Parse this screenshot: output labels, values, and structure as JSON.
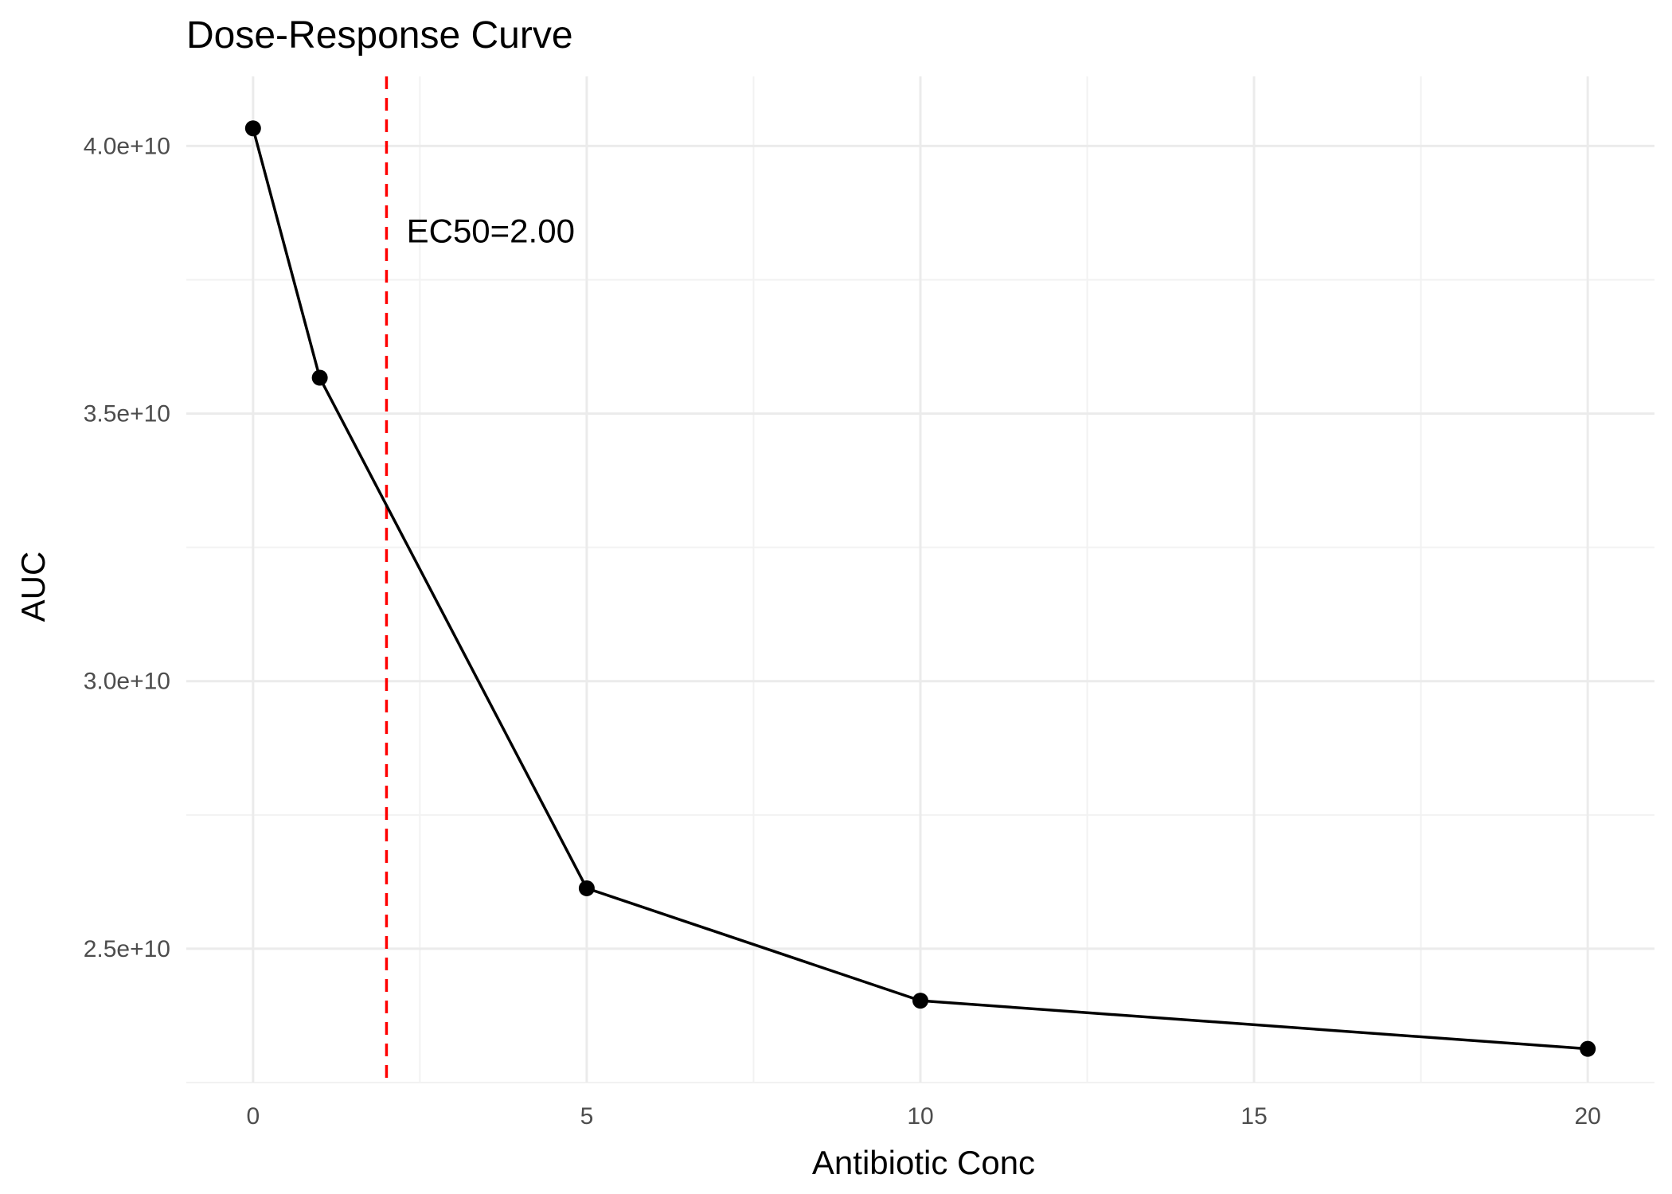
{
  "chart_data": {
    "type": "line",
    "title": "Dose-Response Curve",
    "xlabel": "Antibiotic Conc",
    "ylabel": "AUC",
    "x": [
      0,
      1,
      5,
      10,
      20
    ],
    "series": [
      {
        "values": [
          40330000000,
          35670000000,
          26130000000,
          24030000000,
          23130000000
        ]
      }
    ],
    "xlim": [
      -1,
      21
    ],
    "ylim": [
      22500000000,
      41300000000
    ],
    "x_ticks": [
      0,
      5,
      10,
      15,
      20
    ],
    "x_tick_labels": [
      "0",
      "5",
      "10",
      "15",
      "20"
    ],
    "x_minor_ticks": [
      2.5,
      7.5,
      12.5,
      17.5
    ],
    "y_ticks": [
      25000000000,
      30000000000,
      35000000000,
      40000000000
    ],
    "y_tick_labels": [
      "2.5e+10",
      "3.0e+10",
      "3.5e+10",
      "4.0e+10"
    ],
    "y_minor_ticks": [
      22500000000,
      27500000000,
      32500000000,
      37500000000
    ],
    "grid": true,
    "legend": "none",
    "reference_line": {
      "orientation": "vertical",
      "x": 2.0,
      "style": "dashed",
      "color": "#ff0000"
    },
    "annotations": [
      {
        "text": "EC50=2.00",
        "x": 2.3,
        "y": 38200000000
      }
    ],
    "colors": {
      "line": "#000000",
      "points": "#000000",
      "reference": "#ff0000"
    }
  }
}
